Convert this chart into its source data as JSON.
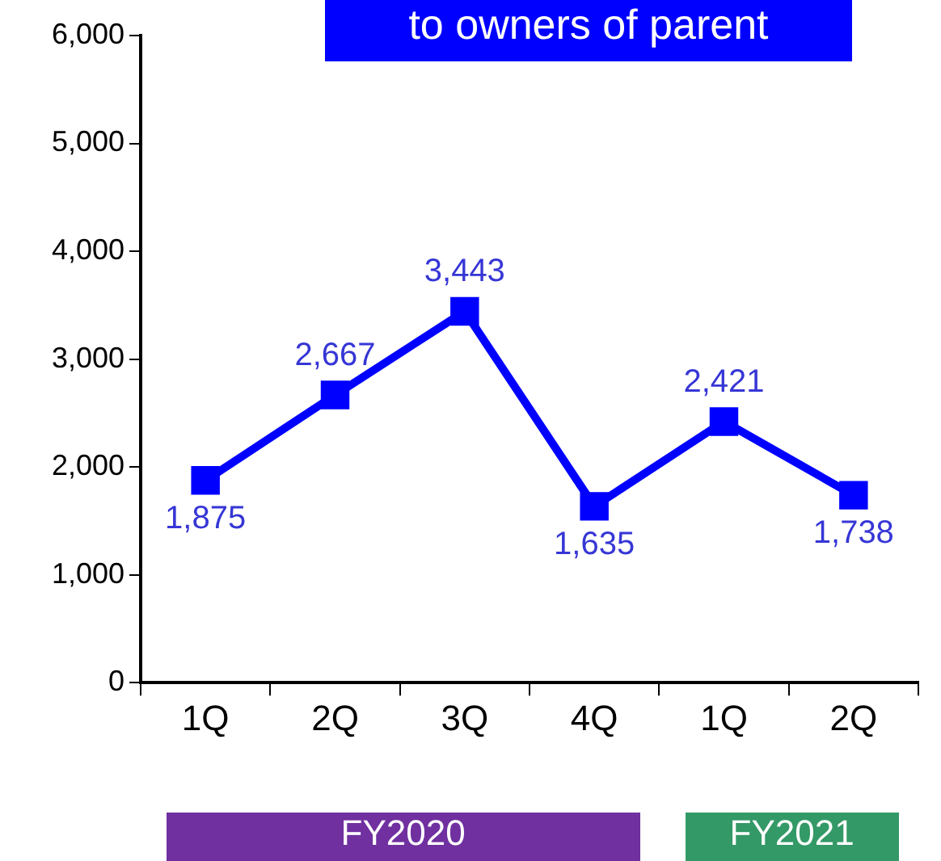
{
  "chart_data": {
    "type": "line",
    "title": "to owners of parent",
    "categories": [
      "1Q",
      "2Q",
      "3Q",
      "4Q",
      "1Q",
      "2Q"
    ],
    "series": [
      {
        "color": "#0000ff",
        "values": [
          1875,
          2667,
          3443,
          1635,
          2421,
          1738
        ],
        "value_labels": [
          "1,875",
          "2,667",
          "3,443",
          "1,635",
          "2,421",
          "1,738"
        ]
      }
    ],
    "ylim": [
      0,
      6000
    ],
    "yticks": [
      0,
      {
        "value": 1000,
        "label": "1,000"
      },
      {
        "value": 2000,
        "label": "2,000"
      },
      {
        "value": 3000,
        "label": "3,000"
      },
      {
        "value": 4000,
        "label": "4,000"
      },
      {
        "value": 5000,
        "label": "5,000"
      },
      {
        "value": 6000,
        "label": "6,000"
      }
    ],
    "grid": false,
    "legend": false,
    "marker": "square",
    "line_style": "solid",
    "annotations": [
      "FY2020",
      "FY2021"
    ]
  }
}
